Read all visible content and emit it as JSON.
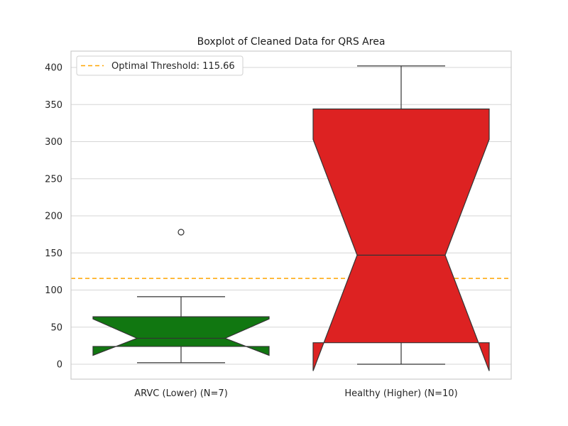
{
  "chart_data": {
    "type": "box",
    "title": "Boxplot of Cleaned Data for QRS Area",
    "xlabel": "",
    "ylabel": "",
    "ylim": [
      -20,
      420
    ],
    "yticks": [
      0,
      50,
      100,
      150,
      200,
      250,
      300,
      350,
      400
    ],
    "ytick_labels": [
      "0",
      "50",
      "100",
      "150",
      "200",
      "250",
      "300",
      "350",
      "400"
    ],
    "grid": true,
    "notched": true,
    "categories": [
      "ARVC (Lower) (N=7)",
      "Healthy (Higher) (N=10)"
    ],
    "boxes": [
      {
        "label": "ARVC (Lower) (N=7)",
        "color": "#117711",
        "whisker_low": 2,
        "q1": 24,
        "median": 35,
        "q3": 64,
        "whisker_high": 91,
        "notch_low": 12,
        "notch_high": 61,
        "outliers": [
          178
        ]
      },
      {
        "label": "Healthy (Higher) (N=10)",
        "color": "#dd2222",
        "whisker_low": 0,
        "q1": 29,
        "median": 147,
        "q3": 344,
        "whisker_high": 402,
        "notch_low": -9,
        "notch_high": 303,
        "outliers": []
      }
    ],
    "threshold": {
      "value": 115.66,
      "label": "Optimal Threshold: 115.66",
      "color": "#ffa500",
      "style": "dashed"
    },
    "legend": {
      "placement": "top-left",
      "entries": [
        "Optimal Threshold: 115.66"
      ]
    }
  }
}
